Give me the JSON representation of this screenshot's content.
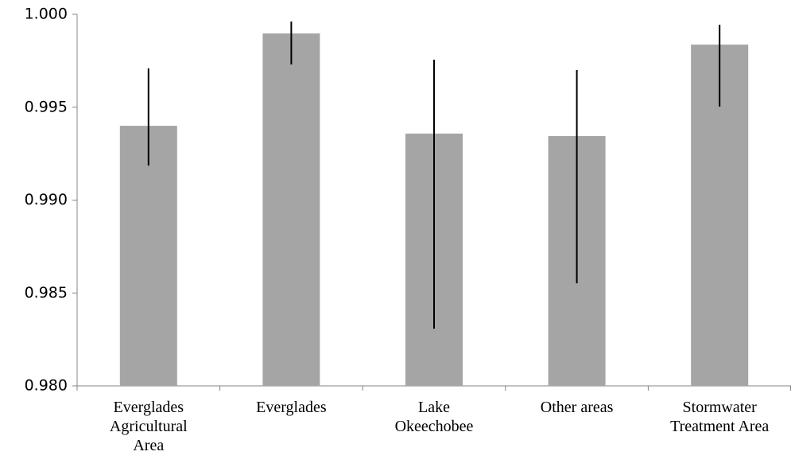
{
  "chart_data": {
    "type": "bar",
    "categories": [
      [
        "Everglades",
        "Agricultural",
        "Area"
      ],
      [
        "Everglades"
      ],
      [
        "Lake",
        "Okeechobee"
      ],
      [
        "Other areas"
      ],
      [
        "Stormwater",
        "Treatment Area"
      ]
    ],
    "values": [
      0.994,
      0.99897,
      0.99358,
      0.99345,
      0.99837
    ],
    "lower": [
      0.99186,
      0.9973,
      0.98308,
      0.98552,
      0.99503
    ],
    "upper": [
      0.99709,
      0.99961,
      0.99756,
      0.997,
      0.99944
    ],
    "color": "#a5a5a5",
    "ylim": [
      0.98,
      1.0
    ],
    "yticks": [
      {
        "value": 0.98,
        "label": "0.980"
      },
      {
        "value": 0.985,
        "label": "0.985"
      },
      {
        "value": 0.99,
        "label": "0.990"
      },
      {
        "value": 0.995,
        "label": "0.995"
      },
      {
        "value": 1.0,
        "label": "1.000"
      }
    ]
  }
}
